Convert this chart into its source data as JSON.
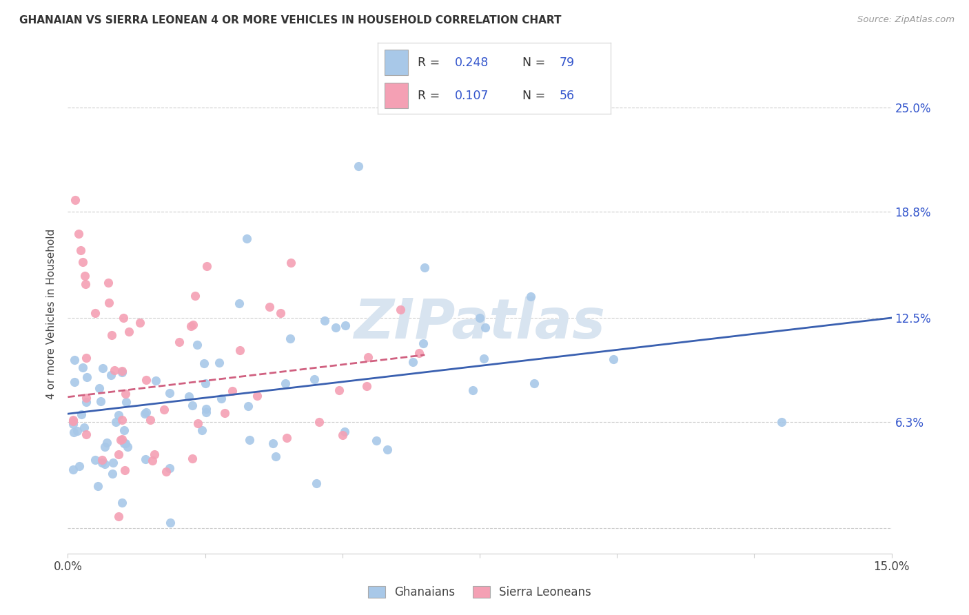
{
  "title": "GHANAIAN VS SIERRA LEONEAN 4 OR MORE VEHICLES IN HOUSEHOLD CORRELATION CHART",
  "source": "Source: ZipAtlas.com",
  "ylabel": "4 or more Vehicles in Household",
  "R1": 0.248,
  "N1": 79,
  "R2": 0.107,
  "N2": 56,
  "color_blue": "#a8c8e8",
  "color_pink": "#f4a0b4",
  "line_color_blue": "#3a60b0",
  "line_color_pink": "#d06080",
  "text_color_blue": "#3355cc",
  "watermark_color": "#d8e4f0",
  "background_color": "#ffffff",
  "grid_color": "#cccccc",
  "xmin": 0.0,
  "xmax": 0.15,
  "ymin": -0.015,
  "ymax": 0.27,
  "ytick_values": [
    0.0,
    0.063,
    0.125,
    0.188,
    0.25
  ],
  "ytick_labels": [
    "",
    "6.3%",
    "12.5%",
    "18.8%",
    "25.0%"
  ],
  "xtick_values": [
    0.0,
    0.025,
    0.05,
    0.075,
    0.1,
    0.125,
    0.15
  ],
  "xtick_labels": [
    "0.0%",
    "",
    "",
    "",
    "",
    "",
    "15.0%"
  ],
  "legend_label1": "Ghanaians",
  "legend_label2": "Sierra Leoneans",
  "title_fontsize": 11,
  "axis_fontsize": 12,
  "legend_fontsize": 12
}
